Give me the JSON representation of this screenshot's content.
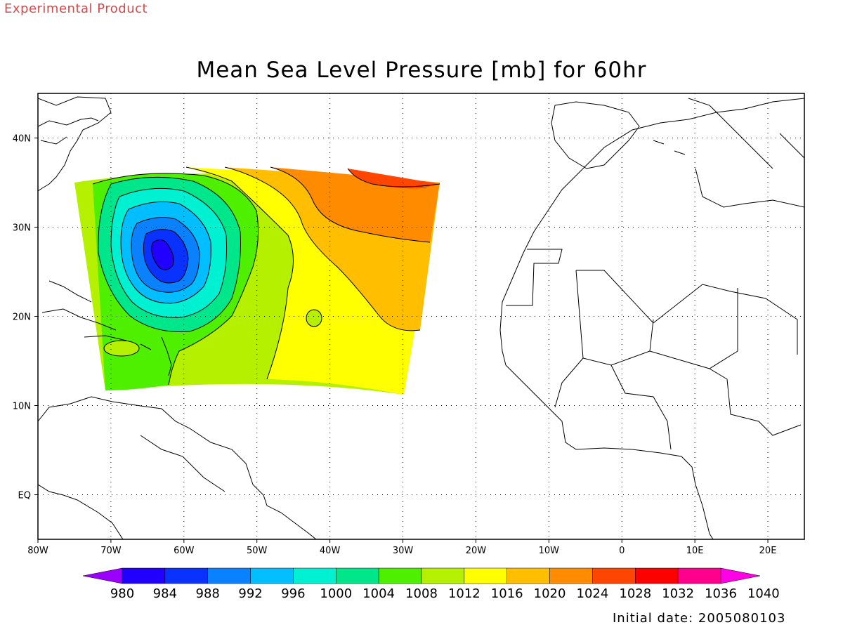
{
  "header": {
    "label": "Experimental Product"
  },
  "title": "Mean Sea Level Pressure [mb] for 60hr",
  "footer": {
    "initial_date": "Initial date: 2005080103"
  },
  "axes": {
    "lon_ticks": [
      "80W",
      "70W",
      "60W",
      "50W",
      "40W",
      "30W",
      "20W",
      "10W",
      "0",
      "10E",
      "20E"
    ],
    "lat_ticks": [
      "40N",
      "30N",
      "20N",
      "10N",
      "EQ"
    ]
  },
  "colorbar": {
    "levels": [
      "980",
      "984",
      "988",
      "992",
      "996",
      "1000",
      "1004",
      "1008",
      "1012",
      "1016",
      "1020",
      "1024",
      "1028",
      "1032",
      "1036",
      "1040"
    ],
    "colors": [
      "#9a00ff",
      "#2200ff",
      "#0a32ff",
      "#0a82ff",
      "#00beff",
      "#00f0d2",
      "#00e68a",
      "#4ef000",
      "#b4f000",
      "#ffff00",
      "#ffbe00",
      "#ff8c00",
      "#ff4600",
      "#ff0000",
      "#ff008c",
      "#ff00e6"
    ]
  },
  "map": {
    "domain": {
      "lon": [
        -80,
        25
      ],
      "lat": [
        -5,
        45
      ]
    },
    "field_name": "Mean Sea Level Pressure",
    "units": "mb",
    "low_center": {
      "lon": -63,
      "lat": 27,
      "value_mb": 984
    },
    "high_center": {
      "lon": -28,
      "lat": 34,
      "value_mb": 1028
    }
  }
}
